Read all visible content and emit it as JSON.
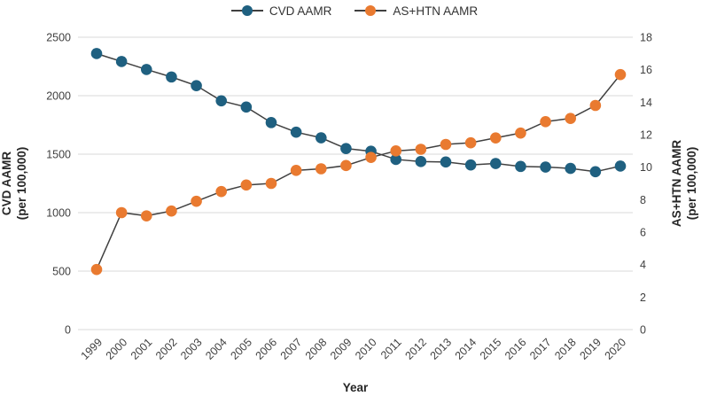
{
  "figure": {
    "background": "#ffffff",
    "legend_position": "top"
  },
  "legend": {
    "items": [
      {
        "label": "CVD AAMR",
        "color": "#1f6080"
      },
      {
        "label": "AS+HTN AAMR",
        "color": "#e97a30"
      }
    ]
  },
  "chart_data": {
    "type": "line",
    "title": "",
    "x_label": "Year",
    "x": [
      "1999",
      "2000",
      "2001",
      "2002",
      "2003",
      "2004",
      "2005",
      "2006",
      "2007",
      "2008",
      "2009",
      "2010",
      "2011",
      "2012",
      "2013",
      "2014",
      "2015",
      "2016",
      "2017",
      "2018",
      "2019",
      "2020"
    ],
    "series": [
      {
        "name": "CVD AAMR",
        "axis": "left",
        "marker_color": "#1f6080",
        "line_color": "#404040",
        "values": [
          2360,
          2292,
          2224,
          2160,
          2086,
          1956,
          1903,
          1770,
          1688,
          1640,
          1548,
          1525,
          1455,
          1437,
          1433,
          1408,
          1420,
          1395,
          1390,
          1378,
          1350,
          1398
        ]
      },
      {
        "name": "AS+HTN AAMR",
        "axis": "right",
        "marker_color": "#e97a30",
        "line_color": "#404040",
        "values": [
          3.7,
          7.2,
          7.0,
          7.3,
          7.9,
          8.5,
          8.9,
          9.0,
          9.8,
          9.9,
          10.1,
          10.6,
          11.0,
          11.1,
          11.4,
          11.5,
          11.8,
          12.1,
          12.8,
          13.0,
          13.8,
          15.7
        ]
      }
    ],
    "left_axis": {
      "label_line1": "CVD AAMR",
      "label_line2": "(per 100,000)",
      "min": 0,
      "max": 2500,
      "ticks": [
        0,
        500,
        1000,
        1500,
        2000,
        2500
      ]
    },
    "right_axis": {
      "label_line1": "AS+HTN AAMR",
      "label_line2": "(per 100,000)",
      "min": 0,
      "max": 18,
      "ticks": [
        0,
        2,
        4,
        6,
        8,
        10,
        12,
        14,
        16,
        18
      ]
    },
    "grid": "horizontal",
    "colors": {
      "gridline": "#d9d9d9",
      "tick_text": "#404040",
      "axis_title_text": "#262626"
    }
  }
}
